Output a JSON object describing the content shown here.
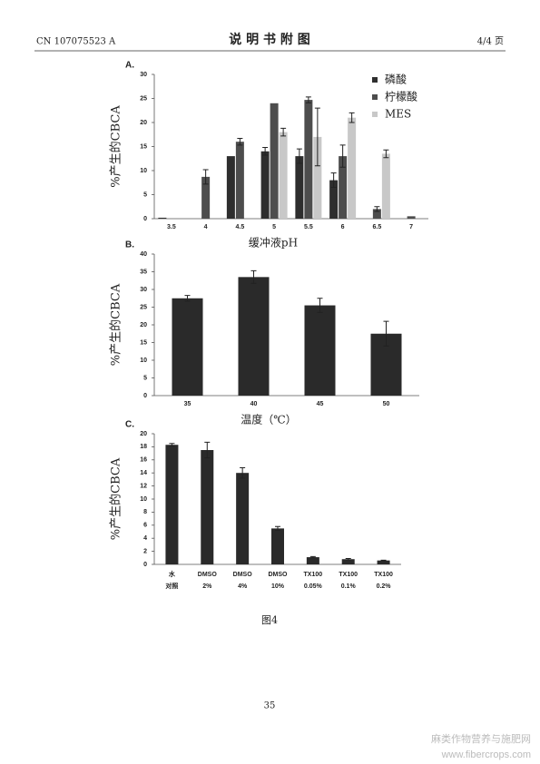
{
  "header": {
    "left": "CN 107075523 A",
    "title": "说 明 书 附 图",
    "right": "4/4 页"
  },
  "chart_data": [
    {
      "type": "bar",
      "panel_label": "A.",
      "ylabel": "%产生的CBCA",
      "xlabel": "缓冲液pH",
      "categories": [
        "3.5",
        "4",
        "4.5",
        "5",
        "5.5",
        "6",
        "6.5",
        "7"
      ],
      "series": [
        {
          "name": "磷酸",
          "color": "#2e2e2e",
          "values": [
            0.2,
            null,
            13,
            14,
            13,
            8,
            null,
            null
          ],
          "errors": [
            null,
            null,
            null,
            0.8,
            1.5,
            1.5,
            null,
            null
          ]
        },
        {
          "name": "柠檬酸",
          "color": "#4d4d4d",
          "values": [
            null,
            8.7,
            16,
            24,
            24.7,
            13,
            2,
            0.5
          ],
          "errors": [
            null,
            1.5,
            0.7,
            null,
            0.6,
            2.3,
            0.5,
            null
          ]
        },
        {
          "name": "MES",
          "color": "#c8c8c8",
          "values": [
            null,
            null,
            null,
            18,
            17,
            21,
            13.5,
            null
          ],
          "errors": [
            null,
            null,
            null,
            0.8,
            6,
            1,
            0.8,
            null
          ]
        }
      ],
      "ylim": [
        0,
        30
      ],
      "yticks": [
        0,
        5,
        10,
        15,
        20,
        25,
        30
      ]
    },
    {
      "type": "bar",
      "panel_label": "B.",
      "ylabel": "%产生的CBCA",
      "xlabel": "温度（℃）",
      "categories": [
        "35",
        "40",
        "45",
        "50"
      ],
      "color": "#2a2a2a",
      "values": [
        27.5,
        33.5,
        25.5,
        17.5
      ],
      "errors": [
        0.8,
        1.8,
        2,
        3.5
      ],
      "ylim": [
        0,
        40
      ],
      "yticks": [
        0,
        5,
        10,
        15,
        20,
        25,
        30,
        35,
        40
      ]
    },
    {
      "type": "bar",
      "panel_label": "C.",
      "ylabel": "%产生的CBCA",
      "categories": [
        [
          "水",
          "对照"
        ],
        [
          "DMSO",
          "2%"
        ],
        [
          "DMSO",
          "4%"
        ],
        [
          "DMSO",
          "10%"
        ],
        [
          "TX100",
          "0.05%"
        ],
        [
          "TX100",
          "0.1%"
        ],
        [
          "TX100",
          "0.2%"
        ]
      ],
      "color": "#2a2a2a",
      "values": [
        18.3,
        17.5,
        14,
        5.5,
        1.1,
        0.8,
        0.6
      ],
      "errors": [
        0.2,
        1.2,
        0.8,
        0.3,
        0.1,
        0.1,
        0.05
      ],
      "ylim": [
        0,
        20
      ],
      "yticks": [
        0,
        2,
        4,
        6,
        8,
        10,
        12,
        14,
        16,
        18,
        20
      ]
    }
  ],
  "caption": "图4",
  "page_number": "35",
  "watermark": {
    "line1": "麻类作物营养与施肥网",
    "line2": "www.fibercrops.com"
  }
}
